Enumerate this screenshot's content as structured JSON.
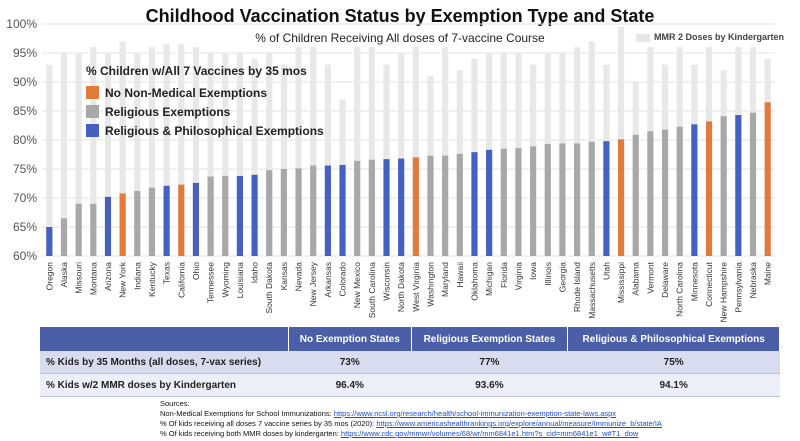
{
  "chart_data": {
    "type": "bar",
    "title": "Childhood Vaccination Status by Exemption Type and State",
    "subtitle": "% of Children Receiving All doses of 7-vaccine Course",
    "ylim": [
      60,
      100
    ],
    "yticks": [
      "60%",
      "65%",
      "70%",
      "75%",
      "80%",
      "85%",
      "90%",
      "95%",
      "100%"
    ],
    "ytick_values": [
      60,
      65,
      70,
      75,
      80,
      85,
      90,
      95,
      100
    ],
    "grid": true,
    "colors": {
      "none": "#e07b39",
      "religious": "#a8a8a8",
      "both": "#4560c0",
      "mmr": "#e8e8e8"
    },
    "categories": [
      "Oregon",
      "Alaska",
      "Missouri",
      "Montana",
      "Arizona",
      "New York",
      "Indiana",
      "Kentucky",
      "Texas",
      "California",
      "Ohio",
      "Tennessee",
      "Wyoming",
      "Louisiana",
      "Idaho",
      "South Dakota",
      "Kansas",
      "Nevada",
      "New Jersey",
      "Arkansas",
      "Colorado",
      "New Mexico",
      "South Carolina",
      "Wisconsin",
      "North Dakota",
      "West Virginia",
      "Washington",
      "Maryland",
      "Hawaii",
      "Oklahoma",
      "Michigan",
      "Florida",
      "Virginia",
      "Iowa",
      "Illinois",
      "Georgia",
      "Rhode Island",
      "Massachusetts",
      "Utah",
      "Mississippi",
      "Alabama",
      "Vermont",
      "Delaware",
      "North Carolina",
      "Minnesota",
      "Connecticut",
      "New Hampshire",
      "Pennsylvania",
      "Nebraska",
      "Maine"
    ],
    "exemption_types": [
      "both",
      "religious",
      "religious",
      "religious",
      "both",
      "none",
      "religious",
      "religious",
      "both",
      "none",
      "both",
      "religious",
      "religious",
      "both",
      "both",
      "religious",
      "religious",
      "religious",
      "religious",
      "both",
      "both",
      "religious",
      "religious",
      "both",
      "both",
      "none",
      "religious",
      "religious",
      "religious",
      "both",
      "both",
      "religious",
      "religious",
      "religious",
      "religious",
      "religious",
      "religious",
      "religious",
      "both",
      "none",
      "religious",
      "religious",
      "religious",
      "religious",
      "both",
      "none",
      "religious",
      "both",
      "religious",
      "none"
    ],
    "series": [
      {
        "name": "% Children w/All 7 Vaccines by 35 mos",
        "values": [
          65,
          66.5,
          69,
          69,
          70.2,
          70.8,
          71.2,
          71.8,
          72.1,
          72.3,
          72.6,
          73.7,
          73.8,
          73.8,
          74,
          74.8,
          75,
          75.1,
          75.6,
          75.6,
          75.7,
          76.4,
          76.6,
          76.7,
          76.8,
          77,
          77.3,
          77.3,
          77.6,
          77.9,
          78.3,
          78.5,
          78.6,
          78.9,
          79.3,
          79.4,
          79.4,
          79.7,
          79.8,
          80.1,
          80.9,
          81.5,
          81.8,
          82.3,
          82.7,
          83.2,
          84.1,
          84.3,
          84.7,
          86.5
        ]
      },
      {
        "name": "MMR 2 Doses by Kindergarten",
        "values": [
          93,
          95,
          95,
          96,
          95,
          97,
          95,
          96,
          96.5,
          96.5,
          96,
          95,
          95,
          95,
          94,
          95,
          93,
          96,
          96,
          93,
          87,
          96,
          96,
          93,
          95,
          96,
          91,
          96,
          92,
          94,
          95,
          95,
          95,
          93,
          95,
          95,
          96,
          97,
          93,
          99.5,
          90,
          96,
          93,
          96,
          93,
          96,
          92,
          96,
          96,
          94
        ]
      }
    ]
  },
  "legend": {
    "header": "% Children w/All 7 Vaccines by 35 mos",
    "items": [
      {
        "label": "No Non-Medical Exemptions",
        "color": "#e07b39"
      },
      {
        "label": "Religious Exemptions",
        "color": "#a8a8a8"
      },
      {
        "label": "Religious & Philosophical Exemptions",
        "color": "#4560c0"
      }
    ],
    "mmr_label": "MMR 2 Doses by Kindergarten"
  },
  "table": {
    "headers": [
      "",
      "No Exemption States",
      "Religious Exemption States",
      "Religious & Philosophical Exemptions"
    ],
    "rows": [
      {
        "label": "% Kids by 35 Months (all doses, 7-vax series)",
        "values": [
          "73%",
          "77%",
          "75%"
        ]
      },
      {
        "label": "% Kids w/2 MMR doses by Kindergarten",
        "values": [
          "96.4%",
          "93.6%",
          "94.1%"
        ]
      }
    ]
  },
  "sources": {
    "heading": "Sources:",
    "lines": [
      {
        "text": "Non-Medical Exemptions for School Immunizations: ",
        "link": "https://www.ncsl.org/research/health/school-immunization-exemption-state-laws.aspx"
      },
      {
        "text": "% Of kids receiving all  doses 7 vaccine series by 35 mos (2020): ",
        "link": "https://www.americashealthrankings.org/explore/annual/measure/Immunize_b/state/IA"
      },
      {
        "text": "% Of kids receiving both MMR doses by kindergarten: ",
        "link": "https://www.cdc.gov/mmwr/volumes/68/wr/mm6841e1.htm?s_cid=mm6841e1_w#T1_dow"
      }
    ]
  }
}
